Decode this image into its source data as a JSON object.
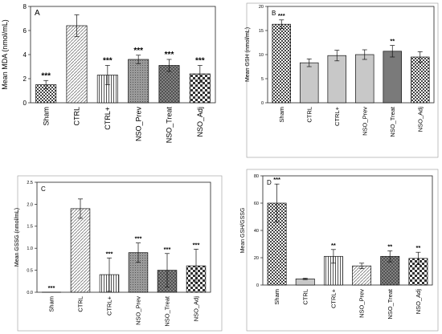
{
  "chart_data": [
    {
      "panel": "A",
      "type": "bar",
      "ylabel": "Mean MDA (nmol/mL)",
      "ylim": [
        0,
        8
      ],
      "yticks": [
        "0",
        "2",
        "4",
        "6",
        "8"
      ],
      "categories": [
        "Sham",
        "CTRL",
        "CTRL+",
        "NSO_Prev",
        "NSO_Treat",
        "NSO_Adj"
      ],
      "values": [
        1.5,
        6.4,
        2.3,
        3.6,
        3.1,
        2.4
      ],
      "errors": [
        0.35,
        0.9,
        0.8,
        0.35,
        0.5,
        0.7
      ],
      "annotations": [
        "***",
        "",
        "***",
        "***",
        "***",
        "***"
      ],
      "patterns": [
        "checker",
        "hatch",
        "vstripe",
        "dense",
        "crosshatch",
        "bigcheck"
      ]
    },
    {
      "panel": "B",
      "type": "bar",
      "ylabel": "Mean GSH (nmol/mL)",
      "ylim": [
        0,
        20
      ],
      "yticks": [
        "0",
        "5",
        "10",
        "15",
        "20"
      ],
      "categories": [
        "Sham",
        "CTRL",
        "CTRL+",
        "NSO_Prev",
        "NSO_Treat",
        "NSO_Adj"
      ],
      "values": [
        16.3,
        8.3,
        9.8,
        10.0,
        10.7,
        9.5
      ],
      "errors": [
        0.9,
        0.8,
        1.1,
        1.0,
        1.2,
        1.1
      ],
      "annotations": [
        "***",
        "",
        "",
        "",
        "**",
        ""
      ],
      "patterns": [
        "checker",
        "solidlight",
        "solidlight",
        "solidlight",
        "soliddark",
        "checker"
      ]
    },
    {
      "panel": "C",
      "type": "bar",
      "ylabel": "Mean GSSG (nmol/mL)",
      "ylim": [
        0,
        2.5
      ],
      "yticks": [
        "0.0",
        "0.5",
        "1.0",
        "1.5",
        "2.0",
        "2.5"
      ],
      "categories": [
        "Sham",
        "CTRL",
        "CTRL+",
        "NSO_Prev",
        "NSO_Treat",
        "NSO_Adj"
      ],
      "values": [
        0.0,
        1.9,
        0.4,
        0.9,
        0.5,
        0.6
      ],
      "errors": [
        0.0,
        0.22,
        0.38,
        0.22,
        0.38,
        0.38
      ],
      "annotations": [
        "***",
        "",
        "***",
        "***",
        "***",
        "***"
      ],
      "patterns": [
        "checker",
        "hatch",
        "vstripe",
        "dense",
        "crosshatch",
        "bigcheck"
      ]
    },
    {
      "panel": "D",
      "type": "bar",
      "ylabel": "Mean GSH/GSSG",
      "ylim": [
        0,
        80
      ],
      "yticks": [
        "0",
        "20",
        "40",
        "60",
        "80"
      ],
      "categories": [
        "Sham",
        "CTRL",
        "CTRL+",
        "NSO_Prev",
        "NSO_Treat",
        "NSO_Adj"
      ],
      "values": [
        60,
        4.5,
        21,
        14,
        21,
        19.5
      ],
      "errors": [
        14,
        0.5,
        5,
        2,
        4,
        4.5
      ],
      "annotations": [
        "***",
        "",
        "**",
        "",
        "**",
        "**"
      ],
      "patterns": [
        "checker",
        "solidlight",
        "vstripe",
        "hatch",
        "crosshatch",
        "bigcheck"
      ]
    }
  ]
}
